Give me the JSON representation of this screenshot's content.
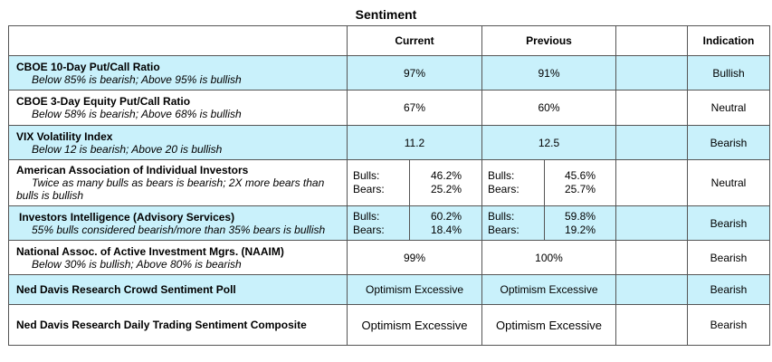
{
  "title": "Sentiment",
  "headers": {
    "current": "Current",
    "previous": "Previous",
    "indication": "Indication"
  },
  "rows": [
    {
      "name": "CBOE 10-Day Put/Call Ratio",
      "desc": "Below 85% is bearish; Above 95% is bullish",
      "current": "97%",
      "previous": "91%",
      "indication": "Bullish"
    },
    {
      "name": "CBOE 3-Day Equity Put/Call Ratio",
      "desc": "Below 58% is bearish; Above 68% is bullish",
      "current": "67%",
      "previous": "60%",
      "indication": "Neutral"
    },
    {
      "name": "VIX Volatility Index",
      "desc": "Below 12 is bearish; Above 20 is bullish",
      "current": "11.2",
      "previous": "12.5",
      "indication": "Bearish"
    },
    {
      "name": "American Association of Individual Investors",
      "desc": "Twice as many bulls as bears is bearish; 2X more bears than bulls is bullish",
      "current": {
        "bulls_label": "Bulls:",
        "bears_label": "Bears:",
        "bulls": "46.2%",
        "bears": "25.2%"
      },
      "previous": {
        "bulls_label": "Bulls:",
        "bears_label": "Bears:",
        "bulls": "45.6%",
        "bears": "25.7%"
      },
      "indication": "Neutral"
    },
    {
      "name": "Investors Intelligence (Advisory Services)",
      "desc": "55% bulls considered bearish/more than 35% bears is bullish",
      "current": {
        "bulls_label": "Bulls:",
        "bears_label": "Bears:",
        "bulls": "60.2%",
        "bears": "18.4%"
      },
      "previous": {
        "bulls_label": "Bulls:",
        "bears_label": "Bears:",
        "bulls": "59.8%",
        "bears": "19.2%"
      },
      "indication": "Bearish"
    },
    {
      "name": "National Assoc. of Active Investment Mgrs. (NAAIM)",
      "desc": "Below 30% is bullish; Above 80% is bearish",
      "current": "99%",
      "previous": "100%",
      "indication": "Bearish"
    },
    {
      "name": "Ned Davis Research Crowd Sentiment Poll",
      "current": "Optimism Excessive",
      "previous": "Optimism Excessive",
      "indication": "Bearish"
    },
    {
      "name": "Ned Davis Research Daily Trading Sentiment Composite",
      "current": "Optimism Excessive",
      "previous": "Optimism Excessive",
      "indication": "Bearish"
    }
  ],
  "colors": {
    "highlight_row": "#c9f1fb",
    "border": "#555555"
  }
}
